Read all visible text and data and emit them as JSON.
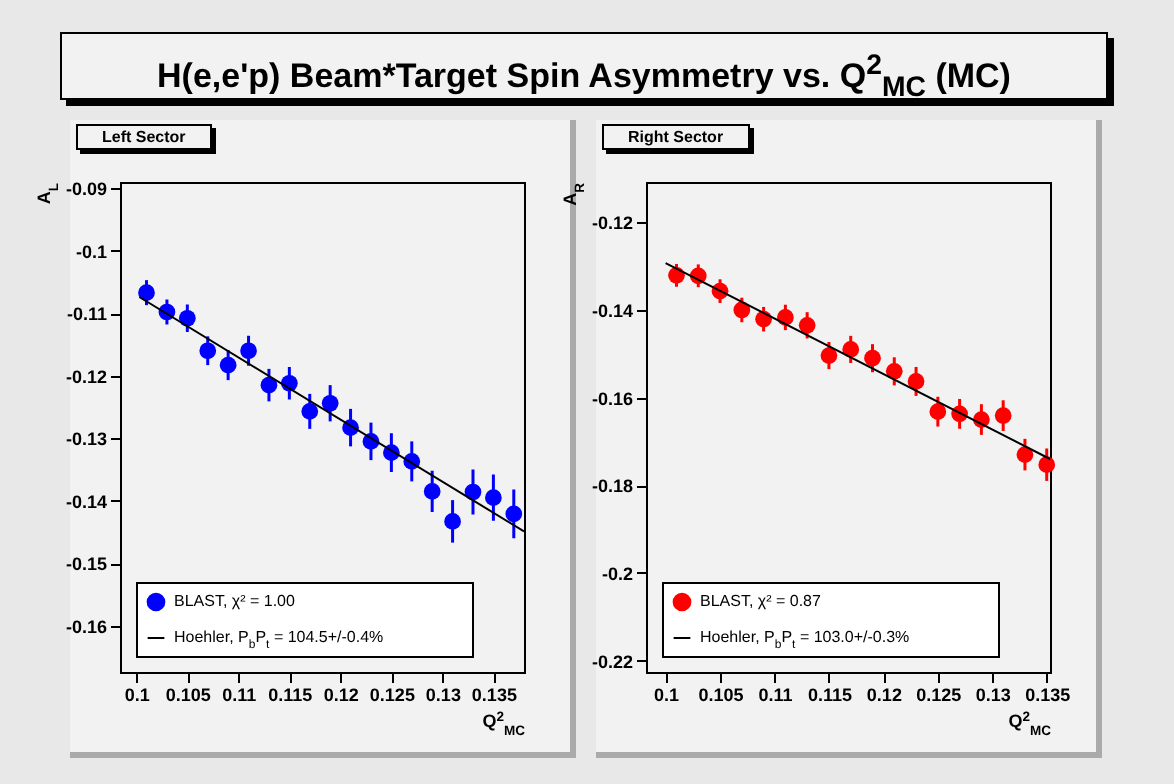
{
  "chart_data": [
    {
      "type": "scatter",
      "title": "H(e,e'p) Beam*Target Spin Asymmetry vs. Q$^{2}$$_{MC}$ (MC)",
      "subtitle": "Left Sector",
      "xlabel": "Q$^{2}$$_{MC}$",
      "ylabel": "A$_{L}$",
      "x": [
        0.101,
        0.103,
        0.105,
        0.107,
        0.109,
        0.111,
        0.113,
        0.115,
        0.117,
        0.119,
        0.121,
        0.123,
        0.125,
        0.127,
        0.129,
        0.131,
        0.133,
        0.135,
        0.137
      ],
      "series": [
        {
          "name": "BLAST,    χ² = 1.00",
          "color": "#0000ff",
          "values": [
            -0.1067,
            -0.1098,
            -0.1108,
            -0.116,
            -0.1183,
            -0.116,
            -0.1215,
            -0.1212,
            -0.1257,
            -0.1244,
            -0.1283,
            -0.1305,
            -0.1323,
            -0.1337,
            -0.1385,
            -0.1433,
            -0.1386,
            -0.1395,
            -0.1421
          ],
          "errors": [
            0.002,
            0.002,
            0.0022,
            0.0023,
            0.0024,
            0.0024,
            0.0026,
            0.0026,
            0.0028,
            0.0029,
            0.003,
            0.003,
            0.0031,
            0.0032,
            0.0033,
            0.0034,
            0.0036,
            0.0037,
            0.0039
          ]
        },
        {
          "name": "Hoehler, P$_{b}$P$_{t}$ = 104.5+/-0.4%",
          "type": "line",
          "marker": "none",
          "color": "#000000",
          "x": [
            0.1003,
            0.138
          ],
          "values": [
            -0.1074,
            -0.1449
          ]
        }
      ],
      "xlim": [
        0.0984,
        0.138
      ],
      "ylim": [
        -0.1674,
        -0.089
      ],
      "xticks": [
        0.1,
        0.105,
        0.11,
        0.115,
        0.12,
        0.125,
        0.13,
        0.135
      ],
      "yticks": [
        -0.16,
        -0.15,
        -0.14,
        -0.13,
        -0.12,
        -0.11,
        -0.1,
        -0.09
      ],
      "legend": "bottom left",
      "marker": "circle",
      "grid": false
    },
    {
      "type": "scatter",
      "subtitle": "Right Sector",
      "xlabel": "Q$^{2}$$_{MC}$",
      "ylabel": "A$_{R}$",
      "x": [
        0.101,
        0.103,
        0.105,
        0.107,
        0.109,
        0.111,
        0.113,
        0.115,
        0.117,
        0.119,
        0.121,
        0.123,
        0.125,
        0.127,
        0.129,
        0.131,
        0.133,
        0.135
      ],
      "series": [
        {
          "name": "BLAST,    χ² = 0.87",
          "color": "#ff0000",
          "values": [
            -0.1321,
            -0.1322,
            -0.1357,
            -0.14,
            -0.1421,
            -0.1417,
            -0.1435,
            -0.1504,
            -0.149,
            -0.151,
            -0.154,
            -0.1563,
            -0.1632,
            -0.1637,
            -0.165,
            -0.1641,
            -0.173,
            -0.1753
          ],
          "errors": [
            0.0026,
            0.0026,
            0.0027,
            0.0028,
            0.0028,
            0.0029,
            0.003,
            0.0031,
            0.0031,
            0.0032,
            0.0032,
            0.0033,
            0.0034,
            0.0034,
            0.0035,
            0.0035,
            0.0036,
            0.0037
          ]
        },
        {
          "name": "Hoehler, P$_{b}$P$_{t}$ = 103.0+/-0.3%",
          "type": "line",
          "marker": "none",
          "color": "#000000",
          "x": [
            0.1,
            0.1353
          ],
          "values": [
            -0.1293,
            -0.174
          ]
        }
      ],
      "xlim": [
        0.0982,
        0.1353
      ],
      "ylim": [
        -0.2226,
        -0.1108
      ],
      "xticks": [
        0.1,
        0.105,
        0.11,
        0.115,
        0.12,
        0.125,
        0.13,
        0.135
      ],
      "yticks": [
        -0.22,
        -0.2,
        -0.18,
        -0.16,
        -0.14,
        -0.12
      ],
      "legend": "bottom left",
      "marker": "circle",
      "grid": false
    }
  ]
}
